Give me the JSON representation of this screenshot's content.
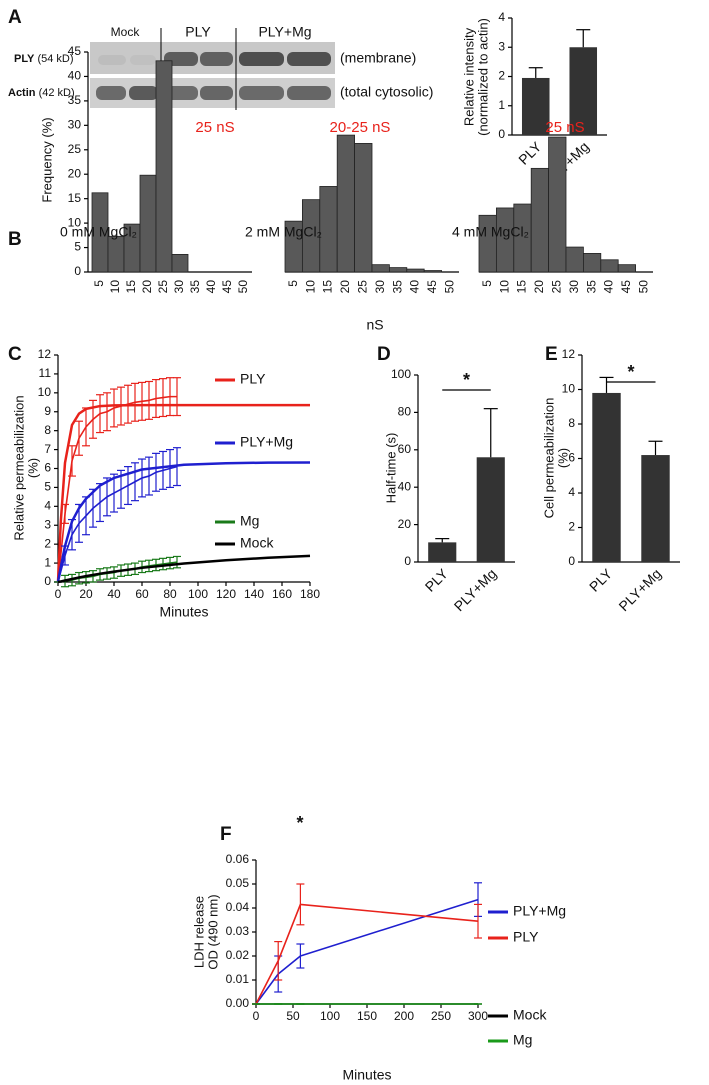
{
  "blot": {
    "lanes": [
      "Mock",
      "PLY",
      "PLY+Mg"
    ],
    "rows": [
      {
        "protein": "PLY",
        "size": "(54 kD)",
        "fraction": "(membrane)"
      },
      {
        "protein": "Actin",
        "size": "(42 kD)",
        "fraction": "(total cytosolic)"
      }
    ]
  },
  "chart_data": [
    {
      "panel": "A",
      "type": "bar",
      "categories": [
        "PLY",
        "PLY+Mg"
      ],
      "values": [
        1.95,
        3.0
      ],
      "errors": [
        0.35,
        0.6
      ],
      "color": "#333333",
      "ylabel": [
        "Relative intensity",
        "(normalized to actin)"
      ],
      "ylim": [
        0,
        4
      ],
      "yticks": [
        0,
        1,
        2,
        3,
        4
      ]
    },
    {
      "panel": "B",
      "type": "bar",
      "title": "0 mM MgCl₂",
      "annotation": "25 nS",
      "ylabel": "Frequency (%)",
      "categories": [
        5,
        10,
        15,
        20,
        25,
        30,
        35,
        40,
        45,
        50
      ],
      "values": [
        16.2,
        7.3,
        9.8,
        19.8,
        43.2,
        3.6,
        0,
        0,
        0,
        0
      ],
      "color": "#595959",
      "ylim": [
        0,
        45
      ],
      "yticks": [
        0,
        5,
        10,
        15,
        20,
        25,
        30,
        35,
        40,
        45
      ]
    },
    {
      "type": "bar",
      "title": "2 mM MgCl₂",
      "annotation": "20-25 nS",
      "xlabel": "nS",
      "categories": [
        5,
        10,
        15,
        20,
        25,
        30,
        35,
        40,
        45,
        50
      ],
      "values": [
        10.4,
        14.8,
        17.5,
        28,
        26.3,
        1.5,
        0.9,
        0.6,
        0.3,
        0
      ],
      "color": "#595959",
      "ylim": [
        0,
        45
      ]
    },
    {
      "type": "bar",
      "title": "4 mM MgCl₂",
      "annotation": "25 nS",
      "categories": [
        5,
        10,
        15,
        20,
        25,
        30,
        35,
        40,
        45,
        50
      ],
      "values": [
        11.6,
        13.1,
        13.9,
        21.2,
        27.6,
        5.1,
        3.8,
        2.5,
        1.5,
        0
      ],
      "color": "#595959",
      "ylim": [
        0,
        45
      ]
    },
    {
      "panel": "C",
      "type": "line",
      "xlabel": "Minutes",
      "ylabel": [
        "Relative permeabilization",
        "(%)"
      ],
      "xlim": [
        0,
        180
      ],
      "xticks": [
        0,
        20,
        40,
        60,
        80,
        100,
        120,
        140,
        160,
        180
      ],
      "ylim": [
        0,
        12
      ],
      "yticks": [
        0,
        1,
        2,
        3,
        4,
        5,
        6,
        7,
        8,
        9,
        10,
        11,
        12
      ],
      "series": [
        {
          "name": "PLY",
          "color": "#e8221b",
          "x": [
            0,
            5,
            10,
            15,
            20,
            25,
            30,
            35,
            40,
            45,
            50,
            55,
            60,
            65,
            70,
            75,
            80,
            85
          ],
          "values": [
            0,
            3.6,
            6.4,
            7.6,
            8.2,
            8.6,
            8.9,
            9.0,
            9.2,
            9.3,
            9.4,
            9.5,
            9.55,
            9.6,
            9.7,
            9.75,
            9.8,
            9.8
          ],
          "errors": [
            0,
            0.5,
            0.8,
            0.9,
            1.0,
            1.0,
            1.0,
            1.0,
            1.0,
            1.0,
            1.0,
            1.0,
            1.0,
            1.0,
            1.0,
            1.0,
            1.0,
            1.0
          ],
          "fit_x": [
            0,
            2,
            5,
            10,
            15,
            20,
            30,
            40,
            60,
            90,
            120,
            150,
            180
          ],
          "fit_values": [
            0,
            3.2,
            6.3,
            8.3,
            8.9,
            9.15,
            9.3,
            9.34,
            9.35,
            9.35,
            9.35,
            9.35,
            9.35
          ]
        },
        {
          "name": "PLY+Mg",
          "color": "#1f1fcf",
          "x": [
            0,
            5,
            10,
            15,
            20,
            25,
            30,
            35,
            40,
            45,
            50,
            55,
            60,
            65,
            70,
            75,
            80,
            85
          ],
          "values": [
            0,
            1.4,
            2.5,
            3.1,
            3.5,
            3.9,
            4.2,
            4.5,
            4.7,
            4.9,
            5.1,
            5.3,
            5.5,
            5.6,
            5.8,
            5.9,
            6.0,
            6.1
          ],
          "errors": [
            0,
            0.5,
            0.8,
            1.0,
            1.0,
            1.0,
            1.0,
            1.0,
            1.0,
            1.0,
            1.0,
            1.0,
            1.0,
            1.0,
            1.0,
            1.0,
            1.0,
            1.0
          ],
          "fit_x": [
            0,
            2,
            5,
            10,
            15,
            20,
            30,
            40,
            60,
            90,
            120,
            150,
            180
          ],
          "fit_values": [
            0,
            0.8,
            1.9,
            3.2,
            3.9,
            4.4,
            5.1,
            5.5,
            5.95,
            6.2,
            6.28,
            6.31,
            6.32
          ]
        },
        {
          "name": "Mg",
          "color": "#1a7a1a",
          "x": [
            0,
            5,
            10,
            15,
            20,
            25,
            30,
            35,
            40,
            45,
            50,
            55,
            60,
            65,
            70,
            75,
            80,
            85
          ],
          "values": [
            0,
            0.05,
            0.1,
            0.2,
            0.25,
            0.3,
            0.4,
            0.45,
            0.5,
            0.6,
            0.65,
            0.7,
            0.8,
            0.85,
            0.9,
            0.95,
            1.0,
            1.05
          ],
          "errors": [
            0,
            0.3,
            0.3,
            0.3,
            0.3,
            0.3,
            0.3,
            0.3,
            0.3,
            0.3,
            0.3,
            0.3,
            0.3,
            0.3,
            0.3,
            0.3,
            0.3,
            0.3
          ]
        },
        {
          "name": "Mock",
          "color": "#000000",
          "fit_x": [
            0,
            2,
            5,
            10,
            15,
            20,
            30,
            40,
            60,
            90,
            120,
            150,
            180
          ],
          "fit_values": [
            0,
            0.03,
            0.08,
            0.16,
            0.24,
            0.31,
            0.44,
            0.55,
            0.75,
            0.98,
            1.15,
            1.28,
            1.38
          ]
        }
      ]
    },
    {
      "panel": "D",
      "type": "bar",
      "categories": [
        "PLY",
        "PLY+Mg"
      ],
      "values": [
        10.5,
        56
      ],
      "errors": [
        2,
        26
      ],
      "color": "#333333",
      "ylabel": "Half-time (s)",
      "significance": "*",
      "ylim": [
        0,
        100
      ],
      "yticks": [
        0,
        20,
        40,
        60,
        80,
        100
      ]
    },
    {
      "panel": "E",
      "type": "bar",
      "categories": [
        "PLY",
        "PLY+Mg"
      ],
      "values": [
        9.8,
        6.2
      ],
      "errors": [
        0.9,
        0.8
      ],
      "color": "#333333",
      "ylabel": [
        "Cell permeabilization",
        "(%)"
      ],
      "significance": "*",
      "ylim": [
        0,
        12
      ],
      "yticks": [
        0,
        2,
        4,
        6,
        8,
        10,
        12
      ]
    },
    {
      "panel": "F",
      "type": "line",
      "xlabel": "Minutes",
      "ylabel": [
        "LDH release",
        "OD (490 nm)"
      ],
      "annotation": "*",
      "x": [
        0,
        30,
        60,
        300
      ],
      "xlim": [
        0,
        300
      ],
      "xticks": [
        0,
        50,
        100,
        150,
        200,
        250,
        300
      ],
      "ylim": [
        0,
        0.06
      ],
      "yticks": [
        {
          "value": 0,
          "label": "0.00"
        },
        0.01,
        0.02,
        0.03,
        0.04,
        0.05,
        0.06
      ],
      "series": [
        {
          "name": "PLY+Mg",
          "color": "#1f1fcf",
          "values": [
            0,
            0.0125,
            0.02,
            0.0435
          ],
          "errors": [
            0,
            0.0075,
            0.005,
            0.007
          ]
        },
        {
          "name": "PLY",
          "color": "#e8221b",
          "values": [
            0,
            0.018,
            0.0415,
            0.0345
          ],
          "errors": [
            0,
            0.008,
            0.0085,
            0.007
          ]
        },
        {
          "name": "Mock",
          "color": "#000000",
          "values": [
            0,
            0,
            0,
            0
          ],
          "errors": [
            0,
            0,
            0,
            0
          ]
        },
        {
          "name": "Mg",
          "color": "#1a9a1a",
          "values": [
            0,
            0,
            0,
            0
          ],
          "errors": [
            0,
            0,
            0,
            0
          ]
        }
      ]
    }
  ]
}
